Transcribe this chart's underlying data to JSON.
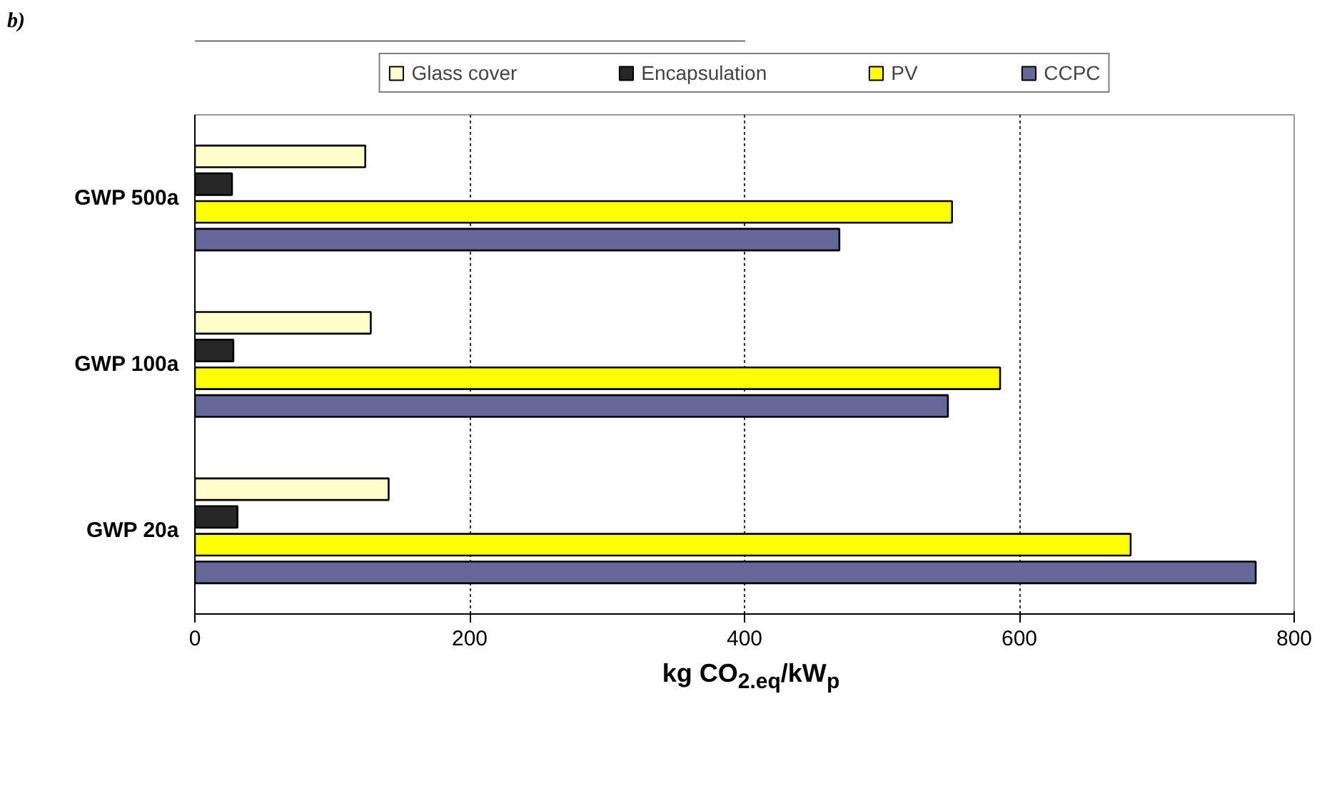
{
  "chart_data": {
    "type": "bar",
    "orientation": "horizontal",
    "annotations": [
      "b)"
    ],
    "categories": [
      "GWP 500a",
      "GWP 100a",
      "GWP 20a"
    ],
    "series": [
      {
        "name": "Glass cover",
        "color": "#ffffcc",
        "values": [
          124,
          128,
          141
        ]
      },
      {
        "name": "Encapsulation",
        "color": "#262626",
        "values": [
          27,
          28,
          31
        ]
      },
      {
        "name": "PV",
        "color": "#ffff00",
        "values": [
          551,
          586,
          681
        ]
      },
      {
        "name": "CCPC",
        "color": "#666699",
        "values": [
          469,
          548,
          772
        ]
      }
    ],
    "xlabel": "kg CO$_{2.eq}$/kW$_{p}$",
    "xlim": [
      0,
      800
    ],
    "xticks": [
      0,
      200,
      400,
      600,
      800
    ],
    "grid": "x",
    "legend": "top"
  }
}
